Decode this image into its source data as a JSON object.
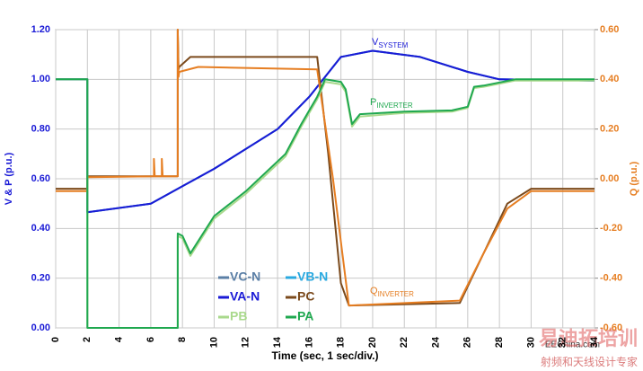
{
  "chart_data": {
    "type": "line",
    "xlabel": "Time (sec, 1 sec/div.)",
    "ylabel": "V & P (p.u.)",
    "y2label": "Q (p.u.)",
    "xlim": [
      0,
      34
    ],
    "xticks": [
      0,
      2,
      4,
      6,
      8,
      10,
      12,
      14,
      16,
      18,
      20,
      22,
      24,
      26,
      28,
      30,
      32,
      34
    ],
    "ylim": [
      0,
      1.2
    ],
    "yticks": [
      {
        "value": 0,
        "label": "0.00"
      },
      {
        "value": 0.2,
        "label": "0.20"
      },
      {
        "value": 0.4,
        "label": "0.40"
      },
      {
        "value": 0.6,
        "label": "0.60"
      },
      {
        "value": 0.8,
        "label": "0.80"
      },
      {
        "value": 1.0,
        "label": "1.00"
      },
      {
        "value": 1.2,
        "label": "1.20"
      }
    ],
    "y2lim": [
      -0.6,
      0.6
    ],
    "y2ticks": [
      {
        "value": -0.6,
        "label": "-0.60"
      },
      {
        "value": -0.4,
        "label": "-0.40"
      },
      {
        "value": -0.2,
        "label": "-0.20"
      },
      {
        "value": 0,
        "label": "0.00"
      },
      {
        "value": 0.2,
        "label": "0.20"
      },
      {
        "value": 0.4,
        "label": "0.40"
      },
      {
        "value": 0.6,
        "label": "0.60"
      }
    ],
    "grid": true,
    "series": [
      {
        "name": "VC-N",
        "color": "#5b7fa6",
        "x": [
          0,
          2,
          2,
          6,
          8,
          10,
          14,
          16,
          18,
          20,
          23,
          26,
          28,
          34
        ],
        "values": [
          1.0,
          1.0,
          0.465,
          0.5,
          0.57,
          0.64,
          0.8,
          0.93,
          1.09,
          1.115,
          1.09,
          1.03,
          1.0,
          0.995
        ]
      },
      {
        "name": "VB-N",
        "color": "#29a9e0",
        "x": [
          0,
          2,
          2,
          6,
          8,
          10,
          14,
          16,
          18,
          20,
          23,
          26,
          28,
          34
        ],
        "values": [
          1.0,
          1.0,
          0.465,
          0.5,
          0.57,
          0.64,
          0.8,
          0.93,
          1.09,
          1.115,
          1.09,
          1.03,
          1.0,
          0.995
        ]
      },
      {
        "name": "VA-N",
        "color": "#1a1ad6",
        "x": [
          0,
          2,
          2,
          6,
          8,
          10,
          14,
          16,
          18,
          20,
          23,
          26,
          28,
          34
        ],
        "values": [
          1.0,
          1.0,
          0.465,
          0.5,
          0.57,
          0.64,
          0.8,
          0.93,
          1.09,
          1.115,
          1.09,
          1.03,
          1.0,
          0.995
        ]
      },
      {
        "name": "PC",
        "color": "#7b4a1c",
        "axis": "y2",
        "x": [
          0,
          2,
          2,
          7.7,
          7.7,
          7.75,
          7.8,
          8.5,
          16.5,
          17.2,
          18,
          18.5,
          25.5,
          27,
          28.5,
          30,
          34
        ],
        "values": [
          -0.04,
          -0.04,
          0.01,
          0.01,
          0.6,
          0.44,
          0.45,
          0.49,
          0.49,
          0.1,
          -0.42,
          -0.51,
          -0.5,
          -0.3,
          -0.1,
          -0.04,
          -0.04
        ]
      },
      {
        "color": "#e67e22",
        "axis": "y2",
        "x": [
          0,
          2,
          2,
          6.2,
          6.2,
          6.25,
          6.7,
          6.7,
          6.75,
          7.7,
          7.7,
          7.75,
          7.8,
          9,
          16.5,
          17.5,
          18.5,
          25.5,
          27,
          28.5,
          30,
          34
        ],
        "values": [
          -0.05,
          -0.05,
          0.006,
          0.01,
          0.08,
          0.01,
          0.01,
          0.08,
          0.01,
          0.01,
          0.6,
          0.41,
          0.43,
          0.45,
          0.44,
          0.0,
          -0.51,
          -0.49,
          -0.3,
          -0.12,
          -0.05,
          -0.05
        ]
      },
      {
        "name": "PB",
        "color": "#a9d98c",
        "x": [
          0,
          2,
          2,
          7.7,
          7.7,
          8,
          8.5,
          10,
          12,
          14.5,
          15.5,
          16.5,
          17,
          18,
          18.3,
          18.7,
          19.2,
          22,
          25,
          26,
          26.4,
          27,
          29,
          34
        ],
        "values": [
          1.0,
          1.0,
          0,
          0,
          0.37,
          0.36,
          0.29,
          0.44,
          0.54,
          0.69,
          0.81,
          0.92,
          0.99,
          0.98,
          0.95,
          0.81,
          0.85,
          0.865,
          0.87,
          0.885,
          0.965,
          0.97,
          0.995,
          0.995
        ]
      },
      {
        "name": "PA",
        "color": "#1fa84f",
        "x": [
          0,
          2,
          2,
          7.7,
          7.7,
          8,
          8.5,
          10,
          12,
          14.5,
          15.5,
          16.5,
          17,
          18,
          18.3,
          18.7,
          19.2,
          22,
          25,
          26,
          26.4,
          27,
          29,
          34
        ],
        "values": [
          1.0,
          1.0,
          0,
          0,
          0.38,
          0.37,
          0.3,
          0.45,
          0.55,
          0.7,
          0.82,
          0.93,
          1.0,
          0.99,
          0.96,
          0.82,
          0.86,
          0.87,
          0.875,
          0.89,
          0.97,
          0.975,
          1.0,
          1.0
        ]
      }
    ],
    "annotations": [
      {
        "text": "V",
        "sub": "SYSTEM",
        "color": "#1a1ad6"
      },
      {
        "text": "P",
        "sub": "INVERTER",
        "color": "#1fa84f"
      },
      {
        "text": "Q",
        "sub": "INVERTER",
        "color": "#e67e22"
      }
    ]
  },
  "watermark": {
    "site": "EEChina.com",
    "brand": "易迪拓培训",
    "slogan": "射频和天线设计专家"
  }
}
